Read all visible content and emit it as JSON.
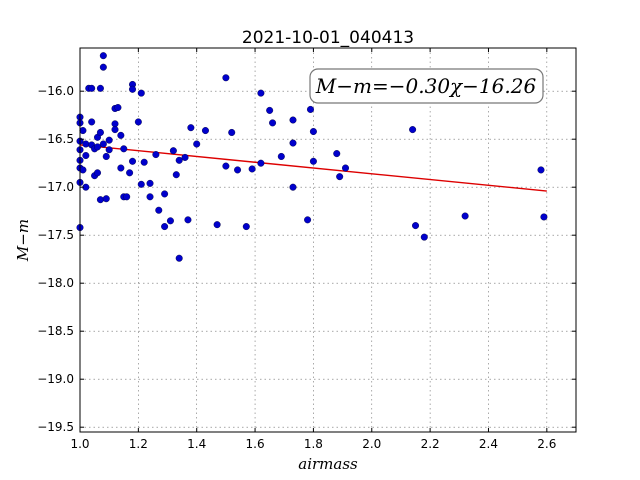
{
  "chart_data": {
    "type": "scatter",
    "title": "2021-10-01_040413",
    "xlabel": "airmass",
    "ylabel": "M−m",
    "xlim": [
      1.0,
      2.7
    ],
    "ylim": [
      -19.55,
      -15.55
    ],
    "x_ticks": [
      1.0,
      1.2,
      1.4,
      1.6,
      1.8,
      2.0,
      2.2,
      2.4,
      2.6
    ],
    "y_ticks": [
      -16.0,
      -16.5,
      -17.0,
      -17.5,
      -18.0,
      -18.5,
      -19.0,
      -19.5
    ],
    "x_tick_labels": [
      "1.0",
      "1.2",
      "1.4",
      "1.6",
      "1.8",
      "2.0",
      "2.2",
      "2.4",
      "2.6"
    ],
    "y_tick_labels": [
      "−16.0",
      "−16.5",
      "−17.0",
      "−17.5",
      "−18.0",
      "−18.5",
      "−19.0",
      "−19.5"
    ],
    "grid": true,
    "annotation": "M−m=−0.30χ−16.26",
    "points": [
      {
        "x": 1.0,
        "y": -16.27
      },
      {
        "x": 1.0,
        "y": -16.33
      },
      {
        "x": 1.0,
        "y": -16.52
      },
      {
        "x": 1.0,
        "y": -16.61
      },
      {
        "x": 1.0,
        "y": -16.72
      },
      {
        "x": 1.0,
        "y": -16.8
      },
      {
        "x": 1.0,
        "y": -16.95
      },
      {
        "x": 1.0,
        "y": -17.42
      },
      {
        "x": 1.01,
        "y": -16.41
      },
      {
        "x": 1.01,
        "y": -16.82
      },
      {
        "x": 1.02,
        "y": -16.55
      },
      {
        "x": 1.02,
        "y": -16.67
      },
      {
        "x": 1.02,
        "y": -17.0
      },
      {
        "x": 1.03,
        "y": -15.97
      },
      {
        "x": 1.04,
        "y": -15.97
      },
      {
        "x": 1.04,
        "y": -16.32
      },
      {
        "x": 1.04,
        "y": -16.56
      },
      {
        "x": 1.05,
        "y": -16.6
      },
      {
        "x": 1.05,
        "y": -16.88
      },
      {
        "x": 1.06,
        "y": -16.48
      },
      {
        "x": 1.06,
        "y": -16.58
      },
      {
        "x": 1.06,
        "y": -16.85
      },
      {
        "x": 1.07,
        "y": -15.97
      },
      {
        "x": 1.07,
        "y": -16.43
      },
      {
        "x": 1.07,
        "y": -17.13
      },
      {
        "x": 1.08,
        "y": -15.63
      },
      {
        "x": 1.08,
        "y": -15.75
      },
      {
        "x": 1.08,
        "y": -16.55
      },
      {
        "x": 1.09,
        "y": -16.68
      },
      {
        "x": 1.09,
        "y": -17.12
      },
      {
        "x": 1.1,
        "y": -16.51
      },
      {
        "x": 1.1,
        "y": -16.61
      },
      {
        "x": 1.12,
        "y": -16.18
      },
      {
        "x": 1.12,
        "y": -16.34
      },
      {
        "x": 1.12,
        "y": -16.4
      },
      {
        "x": 1.13,
        "y": -16.17
      },
      {
        "x": 1.14,
        "y": -16.46
      },
      {
        "x": 1.14,
        "y": -16.8
      },
      {
        "x": 1.15,
        "y": -16.6
      },
      {
        "x": 1.15,
        "y": -17.1
      },
      {
        "x": 1.16,
        "y": -17.1
      },
      {
        "x": 1.17,
        "y": -16.85
      },
      {
        "x": 1.18,
        "y": -15.93
      },
      {
        "x": 1.18,
        "y": -15.98
      },
      {
        "x": 1.18,
        "y": -16.73
      },
      {
        "x": 1.2,
        "y": -16.32
      },
      {
        "x": 1.21,
        "y": -16.02
      },
      {
        "x": 1.21,
        "y": -16.97
      },
      {
        "x": 1.22,
        "y": -16.74
      },
      {
        "x": 1.24,
        "y": -16.96
      },
      {
        "x": 1.24,
        "y": -17.1
      },
      {
        "x": 1.26,
        "y": -16.66
      },
      {
        "x": 1.27,
        "y": -17.24
      },
      {
        "x": 1.29,
        "y": -17.07
      },
      {
        "x": 1.29,
        "y": -17.41
      },
      {
        "x": 1.31,
        "y": -17.35
      },
      {
        "x": 1.32,
        "y": -16.62
      },
      {
        "x": 1.33,
        "y": -16.87
      },
      {
        "x": 1.34,
        "y": -16.72
      },
      {
        "x": 1.34,
        "y": -17.74
      },
      {
        "x": 1.36,
        "y": -16.69
      },
      {
        "x": 1.37,
        "y": -17.34
      },
      {
        "x": 1.38,
        "y": -16.38
      },
      {
        "x": 1.4,
        "y": -16.55
      },
      {
        "x": 1.43,
        "y": -16.41
      },
      {
        "x": 1.47,
        "y": -17.39
      },
      {
        "x": 1.5,
        "y": -16.78
      },
      {
        "x": 1.5,
        "y": -15.86
      },
      {
        "x": 1.52,
        "y": -16.43
      },
      {
        "x": 1.54,
        "y": -16.82
      },
      {
        "x": 1.57,
        "y": -17.41
      },
      {
        "x": 1.59,
        "y": -16.81
      },
      {
        "x": 1.62,
        "y": -16.75
      },
      {
        "x": 1.62,
        "y": -16.02
      },
      {
        "x": 1.65,
        "y": -16.2
      },
      {
        "x": 1.66,
        "y": -16.33
      },
      {
        "x": 1.69,
        "y": -16.68
      },
      {
        "x": 1.73,
        "y": -16.3
      },
      {
        "x": 1.73,
        "y": -16.54
      },
      {
        "x": 1.73,
        "y": -17.0
      },
      {
        "x": 1.78,
        "y": -17.34
      },
      {
        "x": 1.79,
        "y": -16.19
      },
      {
        "x": 1.8,
        "y": -16.42
      },
      {
        "x": 1.8,
        "y": -16.73
      },
      {
        "x": 1.88,
        "y": -16.65
      },
      {
        "x": 1.89,
        "y": -16.89
      },
      {
        "x": 1.91,
        "y": -16.8
      },
      {
        "x": 2.14,
        "y": -16.4
      },
      {
        "x": 2.15,
        "y": -17.4
      },
      {
        "x": 2.18,
        "y": -17.52
      },
      {
        "x": 2.32,
        "y": -17.3
      },
      {
        "x": 2.58,
        "y": -16.82
      },
      {
        "x": 2.59,
        "y": -17.31
      }
    ],
    "fit_line": {
      "x": [
        1.0,
        2.6
      ],
      "y": [
        -16.56,
        -17.04
      ]
    },
    "colors": {
      "points": "#0000cc",
      "fit_line": "#dd0000"
    }
  }
}
